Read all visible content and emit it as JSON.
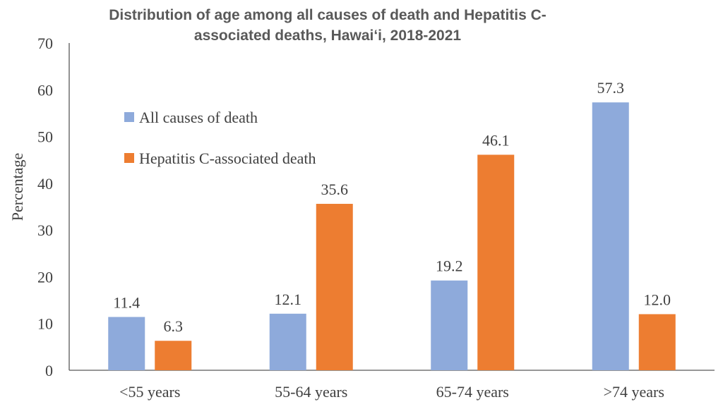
{
  "chart_data": {
    "type": "bar",
    "title": [
      "Distribution of age among all causes of death and Hepatitis C-",
      "associated deaths, Hawai‘i, 2018-2021"
    ],
    "xlabel": "",
    "ylabel": "Percentage",
    "ylim": [
      0,
      70
    ],
    "yticks": [
      0,
      10,
      20,
      30,
      40,
      50,
      60,
      70
    ],
    "categories": [
      "<55 years",
      "55-64 years",
      "65-74 years",
      ">74 years"
    ],
    "series": [
      {
        "name": "All causes of death",
        "color": "#8EAADB",
        "values": [
          11.4,
          12.1,
          19.2,
          57.3
        ],
        "labels": [
          "11.4",
          "12.1",
          "19.2",
          "57.3"
        ]
      },
      {
        "name": "Hepatitis C-associated death",
        "color": "#ED7D31",
        "values": [
          6.3,
          35.6,
          46.1,
          12.0
        ],
        "labels": [
          "6.3",
          "35.6",
          "46.1",
          "12.0"
        ]
      }
    ],
    "legend_position": "top-left",
    "grid": false
  }
}
